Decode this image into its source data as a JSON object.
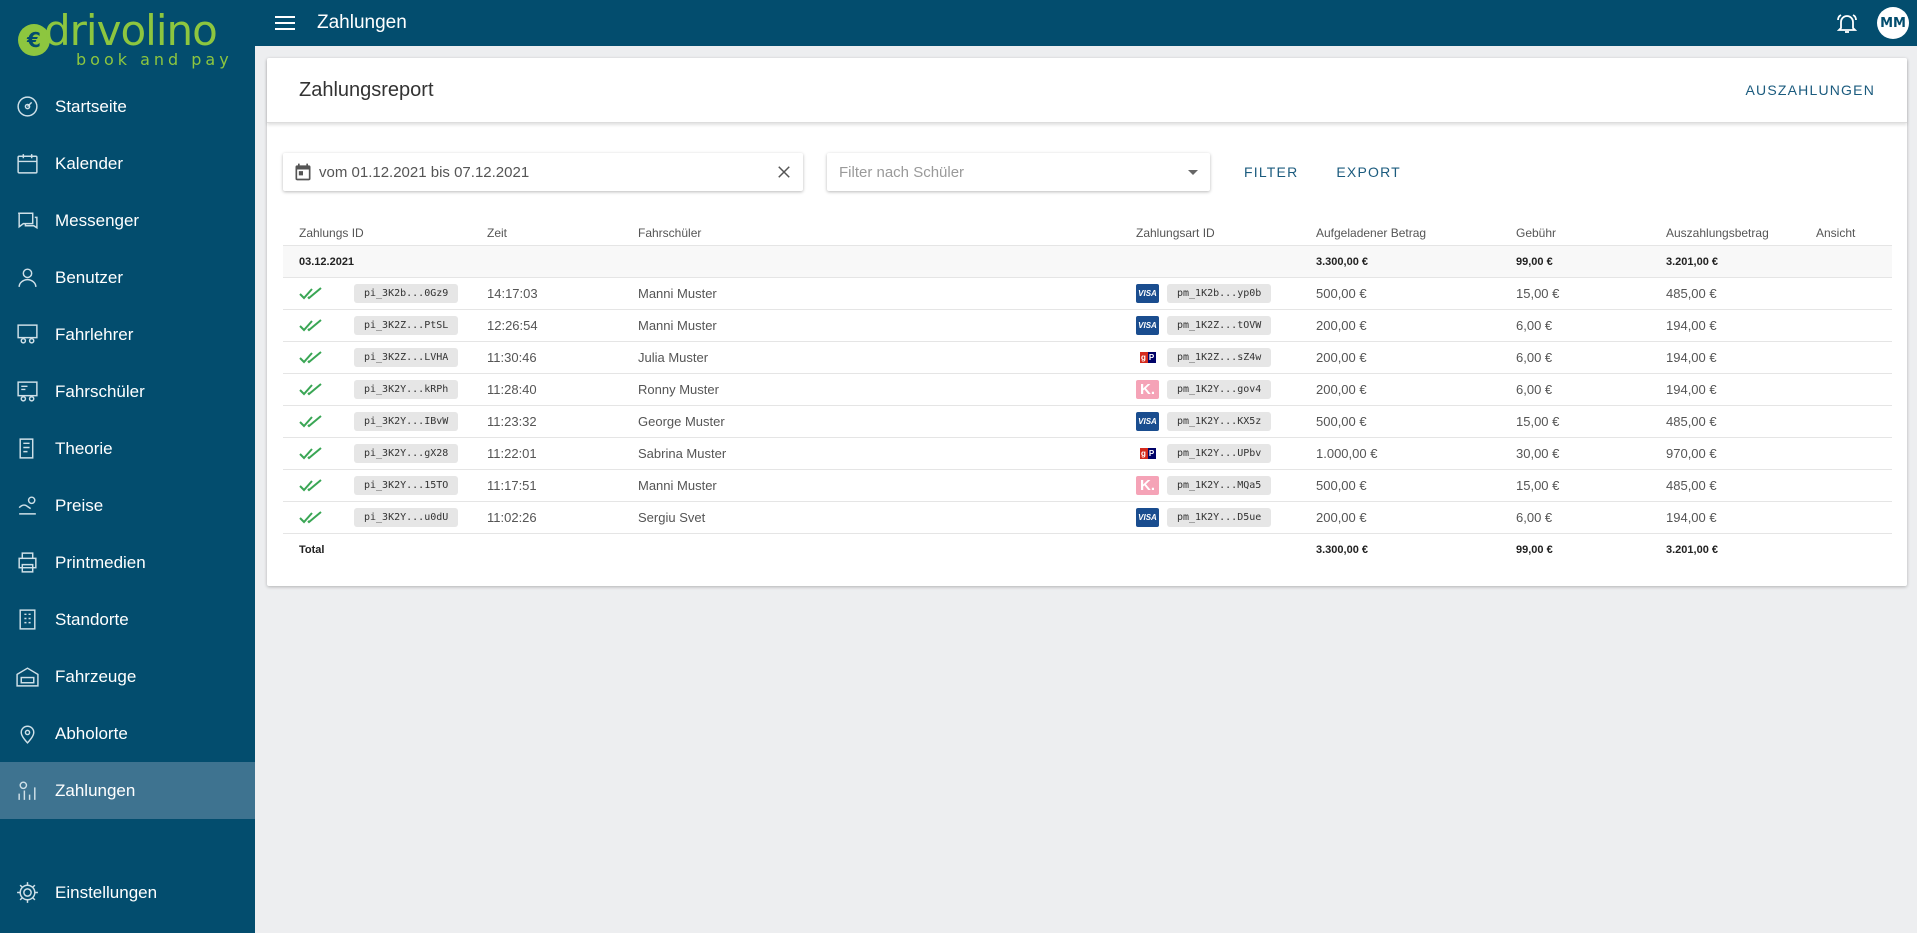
{
  "brand": {
    "name": "drivolino",
    "tagline": "book and pay",
    "coin_symbol": "€",
    "accent_color": "#8dc63f",
    "primary_color": "#034d6e"
  },
  "sidebar": {
    "items": [
      {
        "label": "Startseite",
        "icon": "dashboard-icon"
      },
      {
        "label": "Kalender",
        "icon": "calendar-icon"
      },
      {
        "label": "Messenger",
        "icon": "chat-icon"
      },
      {
        "label": "Benutzer",
        "icon": "user-icon"
      },
      {
        "label": "Fahrlehrer",
        "icon": "instructor-icon"
      },
      {
        "label": "Fahrschüler",
        "icon": "student-icon"
      },
      {
        "label": "Theorie",
        "icon": "book-icon"
      },
      {
        "label": "Preise",
        "icon": "price-icon"
      },
      {
        "label": "Printmedien",
        "icon": "printer-icon"
      },
      {
        "label": "Standorte",
        "icon": "building-icon"
      },
      {
        "label": "Fahrzeuge",
        "icon": "garage-icon"
      },
      {
        "label": "Abholorte",
        "icon": "pickup-location-icon"
      },
      {
        "label": "Zahlungen",
        "icon": "payments-icon",
        "active": true
      }
    ],
    "settings": {
      "label": "Einstellungen",
      "icon": "gear-icon"
    }
  },
  "topbar": {
    "title": "Zahlungen",
    "avatar_initials": "MM"
  },
  "report": {
    "title": "Zahlungsreport",
    "payout_button": "AUSZAHLUNGEN",
    "date_range": "vom 01.12.2021 bis 07.12.2021",
    "student_filter_placeholder": "Filter nach Schüler",
    "filter_button": "FILTER",
    "export_button": "EXPORT"
  },
  "table": {
    "headers": [
      "Zahlungs ID",
      "Zeit",
      "Fahrschüler",
      "Zahlungsart ID",
      "Aufgeladener Betrag",
      "Gebühr",
      "Auszahlungsbetrag",
      "Ansicht"
    ],
    "group": {
      "date": "03.12.2021",
      "amount": "3.300,00 €",
      "fee": "99,00 €",
      "payout": "3.201,00 €"
    },
    "rows": [
      {
        "pid": "pi_3K2b...0Gz9",
        "time": "14:17:03",
        "student": "Manni Muster",
        "method": "visa",
        "pmid": "pm_1K2b...yp0b",
        "amount": "500,00 €",
        "fee": "15,00 €",
        "payout": "485,00 €"
      },
      {
        "pid": "pi_3K2Z...PtSL",
        "time": "12:26:54",
        "student": "Manni Muster",
        "method": "visa",
        "pmid": "pm_1K2Z...tOVW",
        "amount": "200,00 €",
        "fee": "6,00 €",
        "payout": "194,00 €"
      },
      {
        "pid": "pi_3K2Z...LVHA",
        "time": "11:30:46",
        "student": "Julia Muster",
        "method": "giropay",
        "pmid": "pm_1K2Z...sZ4w",
        "amount": "200,00 €",
        "fee": "6,00 €",
        "payout": "194,00 €"
      },
      {
        "pid": "pi_3K2Y...kRPh",
        "time": "11:28:40",
        "student": "Ronny Muster",
        "method": "klarna",
        "pmid": "pm_1K2Y...gov4",
        "amount": "200,00 €",
        "fee": "6,00 €",
        "payout": "194,00 €"
      },
      {
        "pid": "pi_3K2Y...IBvW",
        "time": "11:23:32",
        "student": "George Muster",
        "method": "visa",
        "pmid": "pm_1K2Y...KX5z",
        "amount": "500,00 €",
        "fee": "15,00 €",
        "payout": "485,00 €"
      },
      {
        "pid": "pi_3K2Y...gX28",
        "time": "11:22:01",
        "student": "Sabrina Muster",
        "method": "giropay",
        "pmid": "pm_1K2Y...UPbv",
        "amount": "1.000,00 €",
        "fee": "30,00 €",
        "payout": "970,00 €"
      },
      {
        "pid": "pi_3K2Y...15TO",
        "time": "11:17:51",
        "student": "Manni Muster",
        "method": "klarna",
        "pmid": "pm_1K2Y...MQa5",
        "amount": "500,00 €",
        "fee": "15,00 €",
        "payout": "485,00 €"
      },
      {
        "pid": "pi_3K2Y...u0dU",
        "time": "11:02:26",
        "student": "Sergiu Svet",
        "method": "visa",
        "pmid": "pm_1K2Y...D5ue",
        "amount": "200,00 €",
        "fee": "6,00 €",
        "payout": "194,00 €"
      }
    ],
    "total": {
      "label": "Total",
      "amount": "3.300,00 €",
      "fee": "99,00 €",
      "payout": "3.201,00 €"
    }
  },
  "method_labels": {
    "visa": "VISA",
    "klarna": "K.",
    "giropay_left": "g",
    "giropay_right": "P"
  }
}
